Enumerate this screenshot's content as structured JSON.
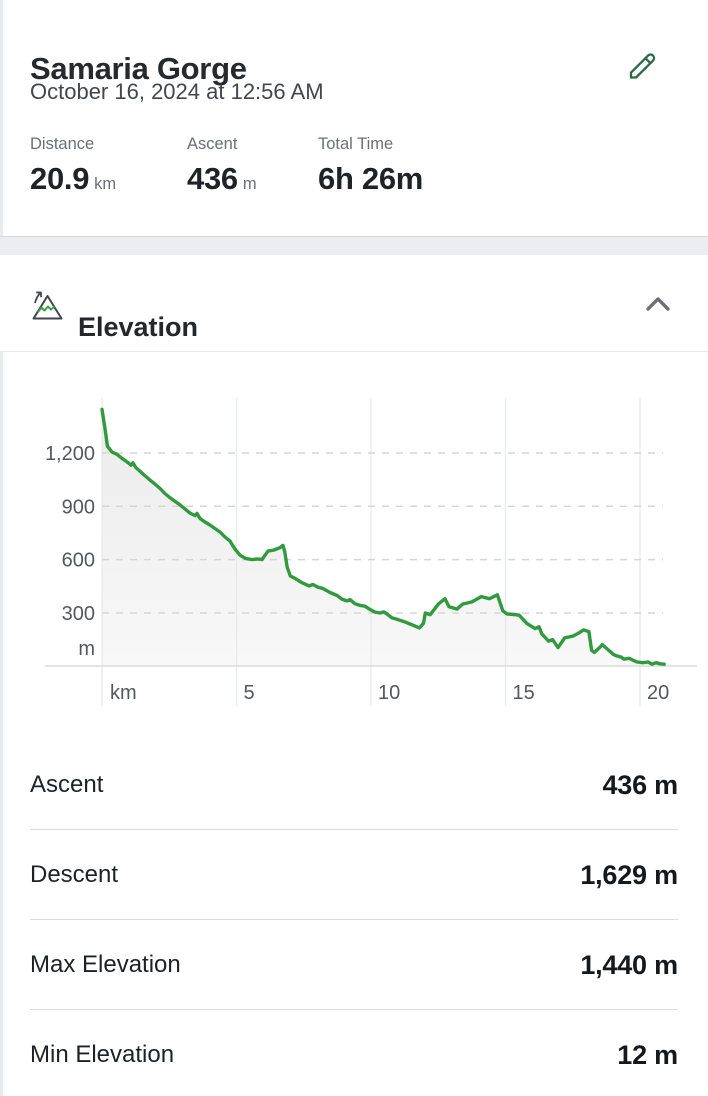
{
  "header": {
    "title": "Samaria Gorge",
    "date": "October 16, 2024 at 12:56 AM",
    "stats": [
      {
        "label": "Distance",
        "value": "20.9",
        "unit": "km"
      },
      {
        "label": "Ascent",
        "value": "436",
        "unit": "m"
      },
      {
        "label": "Total Time",
        "value": "6h 26m",
        "unit": ""
      }
    ]
  },
  "elevation_section": {
    "title": "Elevation",
    "details": [
      {
        "label": "Ascent",
        "value": "436 m"
      },
      {
        "label": "Descent",
        "value": "1,629 m"
      },
      {
        "label": "Max Elevation",
        "value": "1,440 m"
      },
      {
        "label": "Min Elevation",
        "value": "12 m"
      }
    ]
  },
  "icons": {
    "edit": "pencil-icon",
    "section": "mountain-elevation-icon",
    "collapse": "chevron-up-icon"
  },
  "colors": {
    "line_green": "#319a3f",
    "accent_green": "#2b6b44",
    "fill_top": "#ebebec",
    "fill_bottom": "#f8f8f8",
    "grid_vertical": "#e7e8ea",
    "grid_dashed": "#d4d6d8",
    "axis": "#d8dadc",
    "tick_text": "#54575d"
  },
  "chart_data": {
    "type": "area",
    "title": "Elevation profile",
    "xlabel": "km",
    "ylabel": "m",
    "xlim": [
      0,
      20.9
    ],
    "ylim": [
      0,
      1500
    ],
    "grid": "horizontal-dashed, vertical-solid",
    "legend": "none",
    "x_ticks": [
      {
        "value": 0,
        "label": "km"
      },
      {
        "value": 5,
        "label": "5"
      },
      {
        "value": 10,
        "label": "10"
      },
      {
        "value": 15,
        "label": "15"
      },
      {
        "value": 20,
        "label": "20"
      }
    ],
    "y_ticks": [
      {
        "value": 1200,
        "label": "1,200"
      },
      {
        "value": 900,
        "label": "900"
      },
      {
        "value": 600,
        "label": "600"
      },
      {
        "value": 300,
        "label": "300"
      }
    ],
    "y_unit_label": "m",
    "points": [
      [
        0,
        1445
      ],
      [
        0.12,
        1330
      ],
      [
        0.2,
        1238
      ],
      [
        0.37,
        1205
      ],
      [
        0.56,
        1192
      ],
      [
        0.74,
        1170
      ],
      [
        0.93,
        1150
      ],
      [
        1.08,
        1132
      ],
      [
        1.15,
        1145
      ],
      [
        1.26,
        1118
      ],
      [
        1.41,
        1098
      ],
      [
        1.6,
        1072
      ],
      [
        1.78,
        1048
      ],
      [
        1.97,
        1025
      ],
      [
        2.16,
        1000
      ],
      [
        2.34,
        972
      ],
      [
        2.53,
        948
      ],
      [
        2.71,
        928
      ],
      [
        2.9,
        908
      ],
      [
        3.09,
        885
      ],
      [
        3.27,
        862
      ],
      [
        3.46,
        848
      ],
      [
        3.53,
        860
      ],
      [
        3.64,
        832
      ],
      [
        3.83,
        812
      ],
      [
        4.01,
        795
      ],
      [
        4.2,
        775
      ],
      [
        4.39,
        755
      ],
      [
        4.57,
        728
      ],
      [
        4.76,
        705
      ],
      [
        4.94,
        660
      ],
      [
        5.13,
        625
      ],
      [
        5.35,
        606
      ],
      [
        5.58,
        600
      ],
      [
        5.8,
        604
      ],
      [
        5.95,
        600
      ],
      [
        6.06,
        625
      ],
      [
        6.17,
        648
      ],
      [
        6.4,
        654
      ],
      [
        6.62,
        668
      ],
      [
        6.73,
        680
      ],
      [
        6.8,
        640
      ],
      [
        6.88,
        560
      ],
      [
        7.0,
        508
      ],
      [
        7.17,
        495
      ],
      [
        7.43,
        470
      ],
      [
        7.7,
        452
      ],
      [
        7.84,
        460
      ],
      [
        8.03,
        445
      ],
      [
        8.2,
        438
      ],
      [
        8.48,
        415
      ],
      [
        8.74,
        398
      ],
      [
        8.92,
        378
      ],
      [
        9.1,
        368
      ],
      [
        9.22,
        375
      ],
      [
        9.4,
        352
      ],
      [
        9.6,
        342
      ],
      [
        9.78,
        338
      ],
      [
        9.96,
        320
      ],
      [
        10.15,
        305
      ],
      [
        10.33,
        300
      ],
      [
        10.48,
        306
      ],
      [
        10.63,
        290
      ],
      [
        10.78,
        272
      ],
      [
        10.9,
        267
      ],
      [
        11.26,
        250
      ],
      [
        11.5,
        235
      ],
      [
        11.8,
        216
      ],
      [
        11.95,
        242
      ],
      [
        12.02,
        300
      ],
      [
        12.2,
        290
      ],
      [
        12.5,
        350
      ],
      [
        12.75,
        380
      ],
      [
        12.9,
        335
      ],
      [
        13.2,
        322
      ],
      [
        13.4,
        350
      ],
      [
        13.75,
        362
      ],
      [
        14.1,
        392
      ],
      [
        14.4,
        380
      ],
      [
        14.7,
        402
      ],
      [
        14.9,
        312
      ],
      [
        15.05,
        295
      ],
      [
        15.5,
        288
      ],
      [
        15.8,
        240
      ],
      [
        16.1,
        212
      ],
      [
        16.25,
        222
      ],
      [
        16.35,
        182
      ],
      [
        16.6,
        142
      ],
      [
        16.75,
        150
      ],
      [
        16.95,
        105
      ],
      [
        17.2,
        160
      ],
      [
        17.5,
        170
      ],
      [
        17.7,
        185
      ],
      [
        17.9,
        205
      ],
      [
        18.1,
        195
      ],
      [
        18.2,
        90
      ],
      [
        18.3,
        78
      ],
      [
        18.5,
        105
      ],
      [
        18.6,
        122
      ],
      [
        18.8,
        95
      ],
      [
        19.0,
        68
      ],
      [
        19.1,
        60
      ],
      [
        19.3,
        52
      ],
      [
        19.4,
        40
      ],
      [
        19.6,
        45
      ],
      [
        19.8,
        30
      ],
      [
        19.9,
        24
      ],
      [
        20.1,
        20
      ],
      [
        20.3,
        24
      ],
      [
        20.45,
        12
      ],
      [
        20.6,
        20
      ],
      [
        20.75,
        14
      ],
      [
        20.9,
        12
      ]
    ]
  }
}
